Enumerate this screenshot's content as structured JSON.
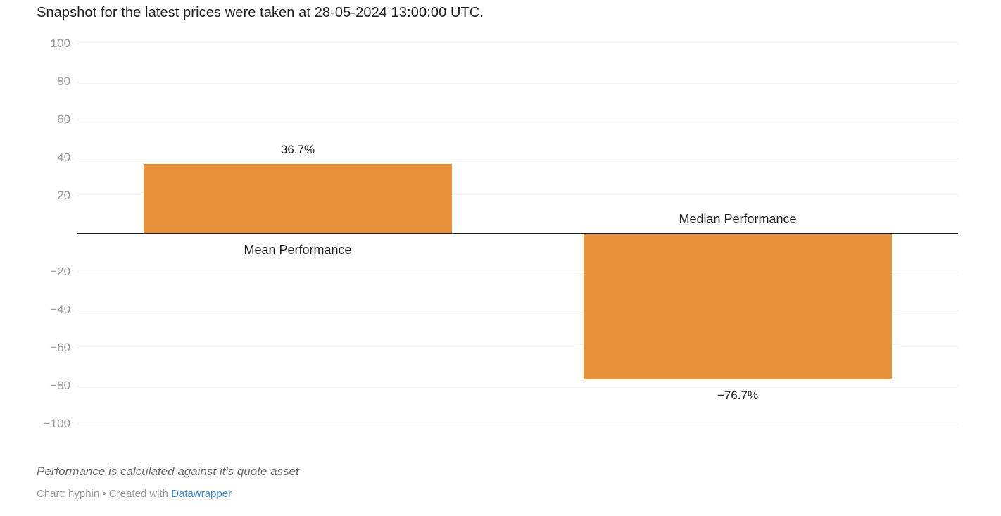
{
  "chart_data": {
    "type": "bar",
    "title": "Snapshot for the latest prices were taken at 28-05-2024 13:00:00 UTC.",
    "categories": [
      "Mean Performance",
      "Median Performance"
    ],
    "values": [
      36.7,
      -76.7
    ],
    "value_labels": [
      "36.7%",
      "−76.7%"
    ],
    "unit": "%",
    "xlabel": "",
    "ylabel": "",
    "ylim": [
      -100,
      100
    ],
    "yticks": [
      {
        "value": 100,
        "label": "100"
      },
      {
        "value": 80,
        "label": "80"
      },
      {
        "value": 60,
        "label": "60"
      },
      {
        "value": 40,
        "label": "40"
      },
      {
        "value": 20,
        "label": "20"
      },
      {
        "value": -20,
        "label": "−20"
      },
      {
        "value": -40,
        "label": "−40"
      },
      {
        "value": -60,
        "label": "−60"
      },
      {
        "value": -80,
        "label": "−80"
      },
      {
        "value": -100,
        "label": "−100"
      }
    ],
    "grid": true,
    "legend": false,
    "bar_color": "#E8923C"
  },
  "footer": {
    "note": "Performance is calculated against it's quote asset",
    "byline_prefix": "Chart: hyphin • Created with ",
    "byline_link_label": "Datawrapper"
  },
  "colors": {
    "bar": "#E8923C",
    "link_blue": "#3A87DE",
    "axis_text": "#9B9B9B",
    "gridline": "#E4E4E4",
    "zero_line": "#1D1D1D",
    "title_text": "#1D1D1D",
    "note_text": "#6B6B6B",
    "byline_text": "#9B9B9B"
  }
}
